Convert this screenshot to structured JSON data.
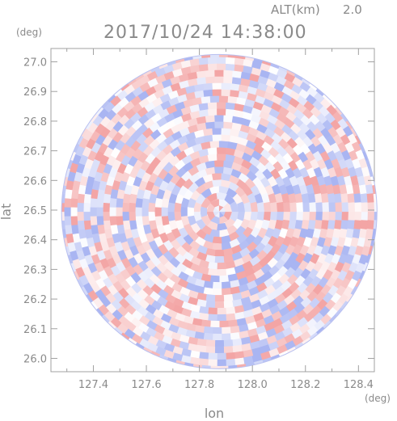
{
  "chart_data": {
    "type": "heatmap",
    "title": "2017/10/24 14:38:00",
    "altitude_label": "ALT(km)",
    "altitude_value": "2.0",
    "xlabel": "lon",
    "ylabel": "lat",
    "x_unit": "(deg)",
    "y_unit": "(deg)",
    "xlim": [
      127.24,
      128.46
    ],
    "ylim": [
      25.955,
      27.045
    ],
    "x_ticks": [
      "127.4",
      "127.6",
      "127.8",
      "128.0",
      "128.2",
      "128.4"
    ],
    "x_tick_values": [
      127.4,
      127.6,
      127.8,
      128.0,
      128.2,
      128.4
    ],
    "y_ticks": [
      "27.0",
      "26.9",
      "26.8",
      "26.7",
      "26.6",
      "26.5",
      "26.4",
      "26.3",
      "26.2",
      "26.1",
      "26.0"
    ],
    "y_tick_values": [
      27.0,
      26.9,
      26.8,
      26.7,
      26.6,
      26.5,
      26.4,
      26.3,
      26.2,
      26.1,
      26.0
    ],
    "radar_center": {
      "lon": 127.875,
      "lat": 26.495
    },
    "radar_extent_deg": {
      "lon": 0.595,
      "lat": 0.53
    },
    "colors": {
      "positive": "#f3a5a5",
      "negative": "#a9b5f2",
      "neutral": "#ffffff",
      "axis": "#a0a0a0",
      "text": "#8a8a8a"
    }
  }
}
